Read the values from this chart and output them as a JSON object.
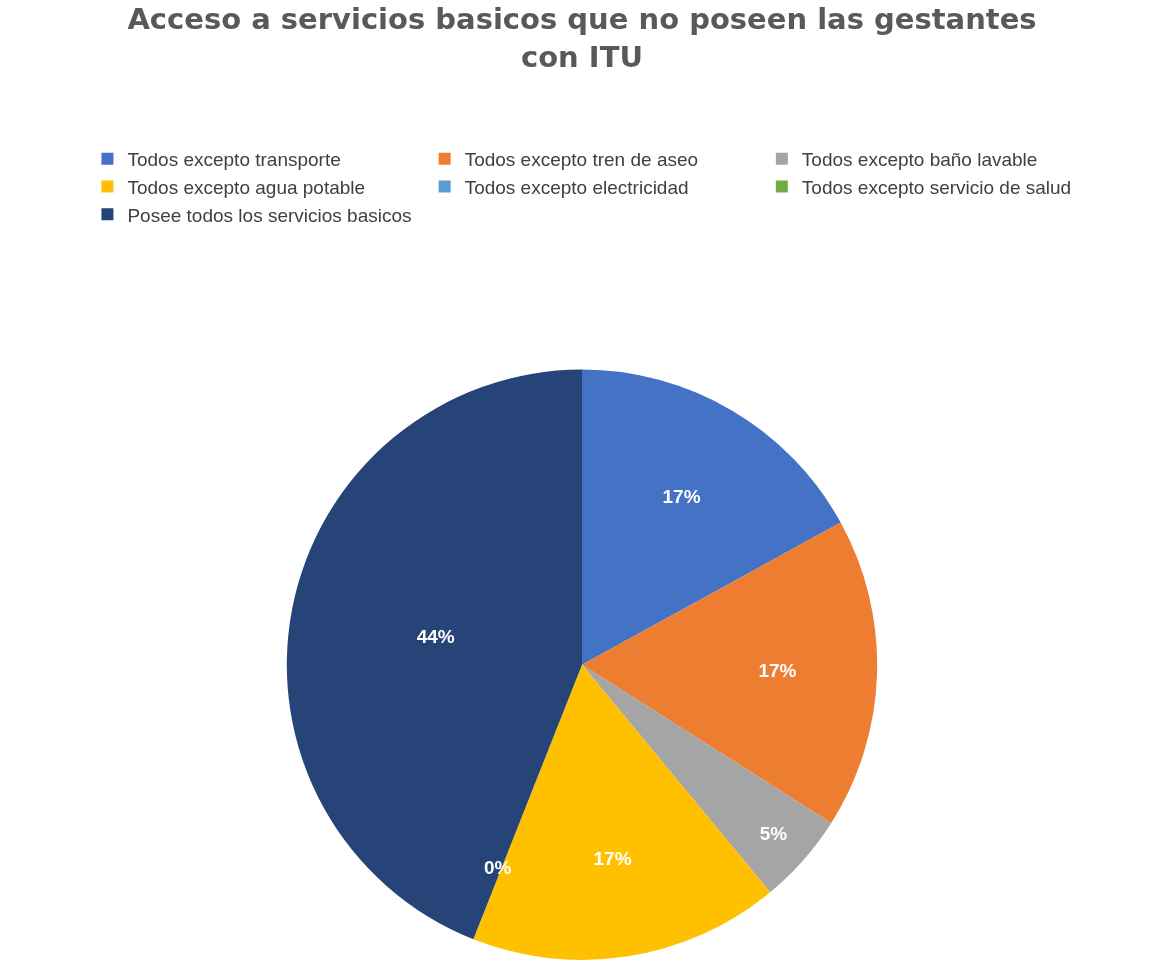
{
  "chart_data": {
    "type": "pie",
    "title": "Acceso a servicios basicos que no poseen las gestantes con ITU",
    "categories": [
      "Todos excepto transporte",
      "Todos excepto tren de aseo",
      "Todos excepto baño lavable",
      "Todos excepto agua potable",
      "Todos excepto electricidad",
      "Todos excepto servicio de salud",
      "Posee todos los servicios basicos"
    ],
    "values": [
      17,
      17,
      5,
      17,
      0,
      0,
      44
    ],
    "colors": [
      "#4472c4",
      "#ed7d31",
      "#a5a5a5",
      "#ffc000",
      "#5b9bd5",
      "#70ad47",
      "#264478"
    ],
    "value_labels": [
      "17%",
      "17%",
      "5%",
      "17%",
      "0%",
      null,
      "44%"
    ],
    "legend": "top"
  }
}
